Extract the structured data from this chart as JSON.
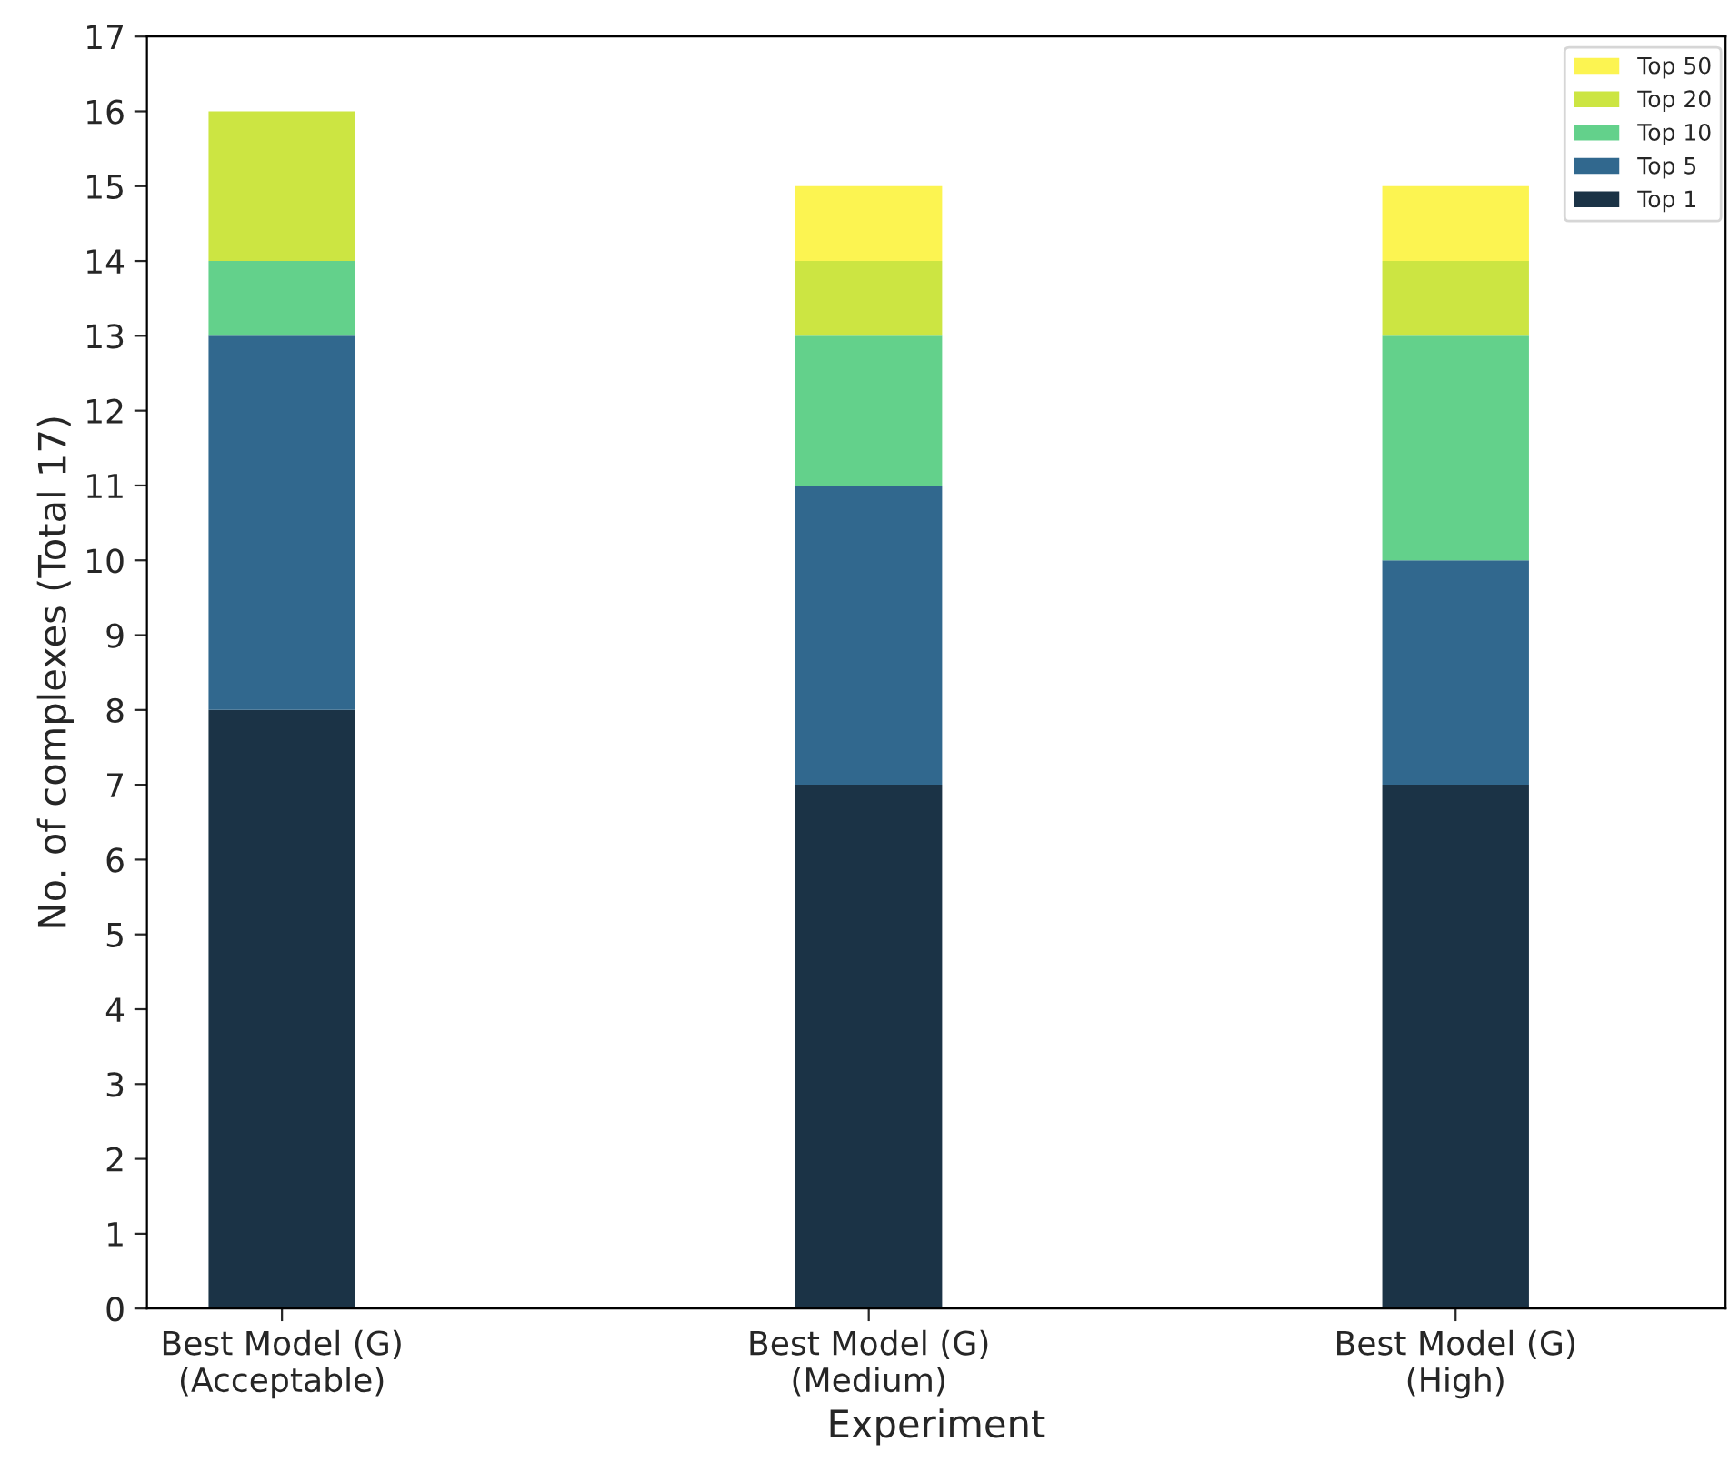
{
  "chart_data": {
    "type": "bar",
    "stacked": true,
    "xlabel": "Experiment",
    "ylabel": "No. of complexes (Total 17)",
    "categories": [
      "Best Model (G)\n(Acceptable)",
      "Best Model (G)\n(Medium)",
      "Best Model (G)\n(High)"
    ],
    "series": [
      {
        "name": "Top 1",
        "color": "#1b3346",
        "values": [
          8,
          7,
          7
        ]
      },
      {
        "name": "Top 5",
        "color": "#31688e",
        "values": [
          5,
          4,
          3
        ]
      },
      {
        "name": "Top 10",
        "color": "#63d18b",
        "values": [
          1,
          2,
          3
        ]
      },
      {
        "name": "Top 20",
        "color": "#cce542",
        "values": [
          2,
          1,
          1
        ]
      },
      {
        "name": "Top 50",
        "color": "#fcf451",
        "values": [
          0,
          1,
          1
        ]
      }
    ],
    "ylim": [
      0,
      17
    ],
    "yticks": [
      0,
      1,
      2,
      3,
      4,
      5,
      6,
      7,
      8,
      9,
      10,
      11,
      12,
      13,
      14,
      15,
      16,
      17
    ],
    "grid": false,
    "legend": "top right"
  }
}
